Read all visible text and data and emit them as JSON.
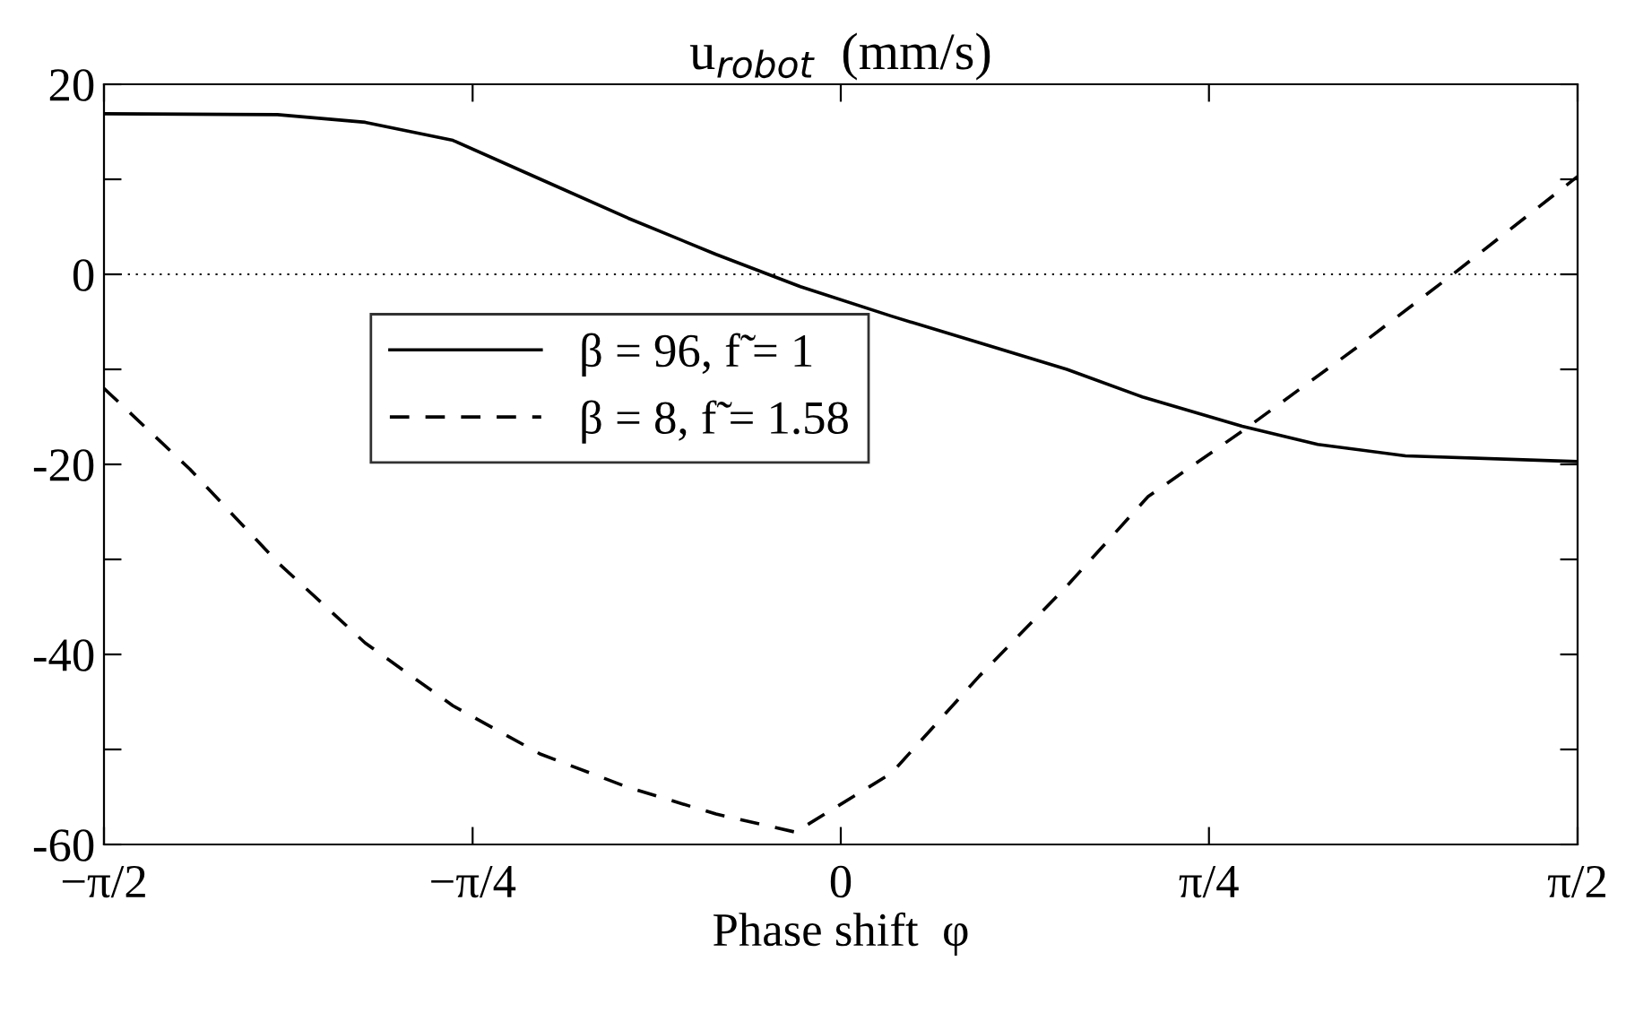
{
  "chart_data": {
    "type": "line",
    "title": "u$_{robot}$  (mm/s)",
    "xlabel": "Phase shift  φ",
    "xlim": [
      -1.571,
      1.571
    ],
    "xticks": [
      {
        "value": -1.571,
        "label": "−π/2"
      },
      {
        "value": -0.785,
        "label": "−π/4"
      },
      {
        "value": 0,
        "label": "0"
      },
      {
        "value": 0.785,
        "label": "π/4"
      },
      {
        "value": 1.571,
        "label": "π/2"
      }
    ],
    "ylim": [
      -60,
      20
    ],
    "yticks": [
      {
        "value": -60,
        "label": "-60"
      },
      {
        "value": -50,
        "label": null
      },
      {
        "value": -40,
        "label": "-40"
      },
      {
        "value": -30,
        "label": null
      },
      {
        "value": -20,
        "label": "-20"
      },
      {
        "value": -10,
        "label": null
      },
      {
        "value": 0,
        "label": "0"
      },
      {
        "value": 10,
        "label": null
      },
      {
        "value": 20,
        "label": "20"
      }
    ],
    "grid": false,
    "legend": "center",
    "marker": "none",
    "ref_lines": [
      {
        "axis": "y",
        "value": 0,
        "line_style": "dotted",
        "color": "#000000"
      }
    ],
    "series": [
      {
        "name": "β = 96, f̃ = 1",
        "color": "#000000",
        "line_style": "solid",
        "x": [
          -1.571,
          -1.201,
          -1.014,
          -0.827,
          -0.64,
          -0.453,
          -0.266,
          -0.086,
          0.108,
          0.295,
          0.482,
          0.643,
          0.856,
          1.017,
          1.204,
          1.571
        ],
        "values": [
          16.9,
          16.8,
          16.0,
          14.1,
          10.0,
          5.9,
          2.1,
          -1.3,
          -4.4,
          -7.2,
          -10.0,
          -12.9,
          -16.0,
          -17.9,
          -19.1,
          -19.7
        ]
      },
      {
        "name": "β = 8, f̃ = 1.58",
        "color": "#000000",
        "line_style": "dashed",
        "x": [
          -1.571,
          -1.388,
          -1.201,
          -1.014,
          -0.827,
          -0.64,
          -0.453,
          -0.266,
          -0.097,
          0.108,
          0.295,
          0.482,
          0.655,
          0.856,
          1.103,
          1.305,
          1.571
        ],
        "values": [
          -12.0,
          -20.5,
          -30.3,
          -38.8,
          -45.4,
          -50.5,
          -54.0,
          -56.8,
          -58.7,
          -52.5,
          -42.3,
          -32.8,
          -23.4,
          -16.5,
          -7.6,
          0.0,
          10.3
        ]
      }
    ]
  }
}
